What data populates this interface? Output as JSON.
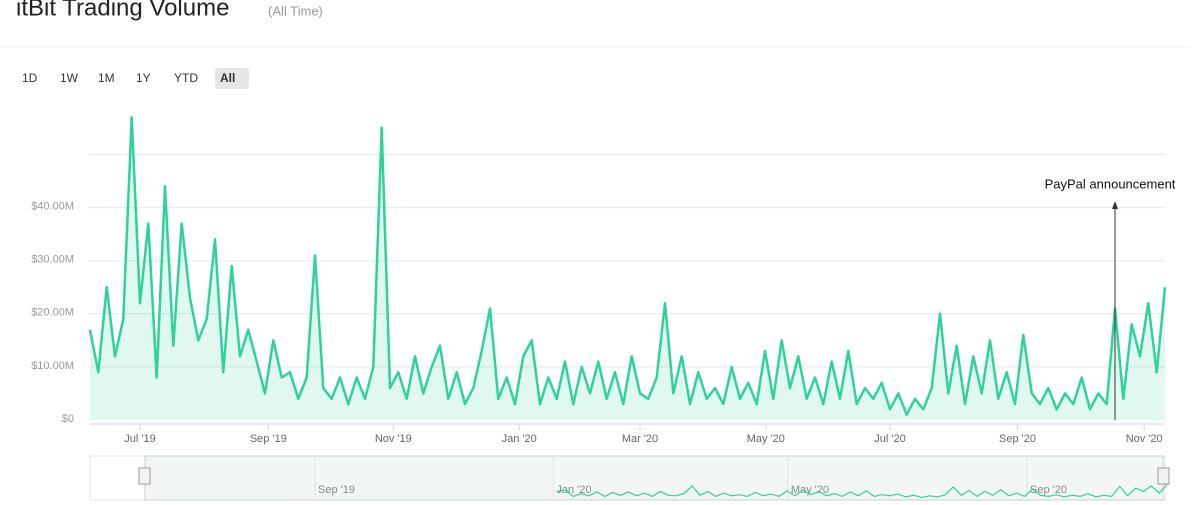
{
  "chart_data": {
    "type": "area",
    "title": "itBit Trading Volume",
    "subtitle": "(All Time)",
    "range_buttons": [
      "1D",
      "1W",
      "1M",
      "1Y",
      "YTD",
      "All"
    ],
    "selected_range": "All",
    "color": "#2fd39a",
    "values": [
      17,
      9,
      25,
      12,
      19,
      57,
      22,
      37,
      8,
      44,
      14,
      37,
      23,
      15,
      19,
      34,
      9,
      29,
      12,
      17,
      11,
      5,
      15,
      8,
      9,
      4,
      8,
      31,
      6,
      4,
      8,
      3,
      8,
      4,
      10,
      55,
      6,
      9,
      4,
      12,
      5,
      10,
      14,
      4,
      9,
      3,
      6,
      13,
      21,
      4,
      8,
      3,
      12,
      15,
      3,
      8,
      4,
      11,
      3,
      10,
      5,
      11,
      4,
      9,
      3,
      12,
      5,
      4,
      8,
      22,
      5,
      12,
      3,
      9,
      4,
      6,
      3,
      10,
      4,
      7,
      3,
      13,
      4,
      15,
      6,
      12,
      4,
      8,
      3,
      11,
      4,
      13,
      3,
      6,
      4,
      7,
      2,
      5,
      1,
      4,
      2,
      6,
      20,
      5,
      14,
      3,
      12,
      5,
      15,
      4,
      9,
      3,
      16,
      5,
      3,
      6,
      2,
      5,
      3,
      8,
      2,
      5,
      3,
      21,
      4,
      18,
      12,
      22,
      9,
      25
    ],
    "xlim": [
      0,
      129
    ],
    "xticks": [
      {
        "value": 6,
        "label": "Jul '19"
      },
      {
        "value": 21.4,
        "label": "Sep '19"
      },
      {
        "value": 36.4,
        "label": "Nov '19"
      },
      {
        "value": 51.5,
        "label": "Jan '20"
      },
      {
        "value": 66,
        "label": "Mar '20"
      },
      {
        "value": 81.1,
        "label": "May '20"
      },
      {
        "value": 96,
        "label": "Jul '20"
      },
      {
        "value": 111.3,
        "label": "Sep '20"
      },
      {
        "value": 126.5,
        "label": "Nov '20"
      }
    ],
    "ylim": [
      0,
      58
    ],
    "yticks": [
      {
        "value": 0,
        "label": "$0"
      },
      {
        "value": 10,
        "label": "$10.00M"
      },
      {
        "value": 20,
        "label": "$20.00M"
      },
      {
        "value": 30,
        "label": "$30.00M"
      },
      {
        "value": 40,
        "label": "$40.00M"
      }
    ],
    "ygridlines": [
      10,
      20,
      30,
      40,
      50
    ],
    "annotation": {
      "text": "PayPal announcement",
      "x": 123
    },
    "navigator": {
      "start": 52,
      "labels": [
        {
          "value": 21.4,
          "label": "Sep '19"
        },
        {
          "value": 51.5,
          "label": "Jan '20"
        },
        {
          "value": 81.1,
          "label": "May '20"
        },
        {
          "value": 111.3,
          "label": "Sep '20"
        }
      ]
    }
  }
}
